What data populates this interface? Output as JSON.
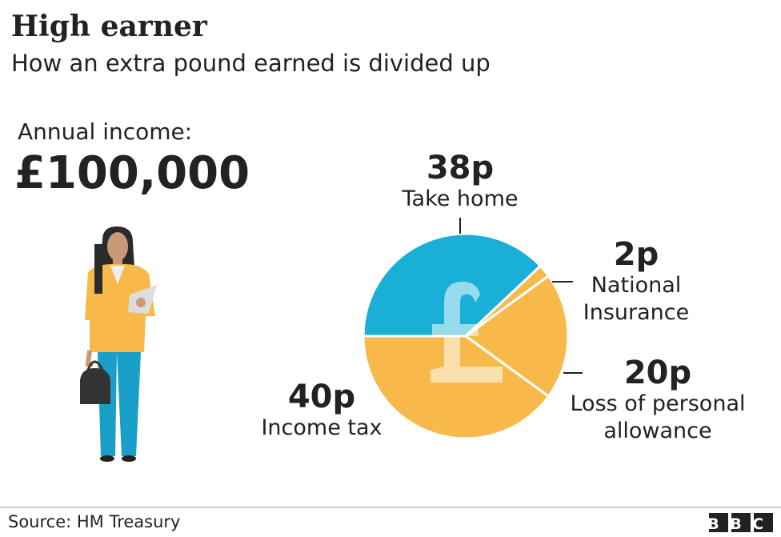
{
  "chart_data": {
    "type": "pie",
    "title": "High earner",
    "subtitle": "How an extra pound earned is divided up",
    "annotations": [
      "Annual income:",
      "£100,000"
    ],
    "categories": [
      "Take home",
      "National Insurance",
      "Loss of personal allowance",
      "Income tax"
    ],
    "values": [
      38,
      2,
      20,
      40
    ],
    "value_labels": [
      "38p",
      "2p",
      "20p",
      "40p"
    ],
    "colors": [
      "#1aafd6",
      "#f6b94a",
      "#f6b94a",
      "#f6b94a"
    ],
    "source": "Source: HM Treasury",
    "logo": "BBC"
  }
}
